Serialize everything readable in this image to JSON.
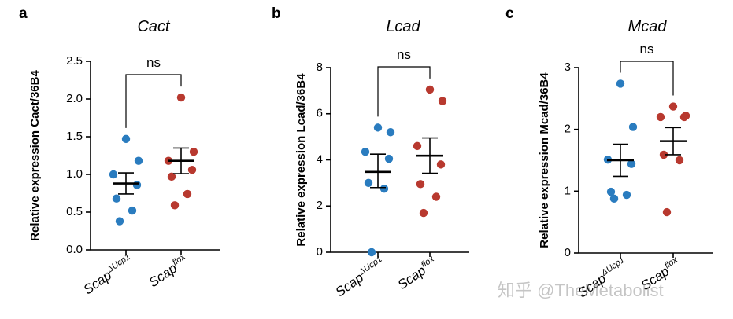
{
  "watermark": "知乎 @TheMetabolist",
  "colors": {
    "group1": "#2a7cbf",
    "group2": "#b8392f",
    "axis": "#000000"
  },
  "chart_data": [
    {
      "type": "scatter",
      "panel": "a",
      "title": "Cact",
      "ylabel": "Relative expression Cact/36B4",
      "ylim": [
        0,
        2.5
      ],
      "yticks": [
        "0.0",
        "0.5",
        "1.0",
        "1.5",
        "2.0",
        "2.5"
      ],
      "categories": [
        "Scap",
        "Scap"
      ],
      "category_superscripts": [
        "ΔUcp1",
        "flox"
      ],
      "significance": "ns",
      "series": [
        {
          "name": "ScapΔUcp1",
          "values": [
            1.47,
            1.18,
            1.0,
            0.86,
            0.68,
            0.52,
            0.38
          ],
          "mean": 0.88,
          "sem_low": 0.74,
          "sem_high": 1.02
        },
        {
          "name": "Scapflox",
          "values": [
            2.02,
            1.3,
            1.18,
            1.06,
            0.97,
            0.74,
            0.59
          ],
          "mean": 1.18,
          "sem_low": 1.01,
          "sem_high": 1.35
        }
      ]
    },
    {
      "type": "scatter",
      "panel": "b",
      "title": "Lcad",
      "ylabel": "Relative expression Lcad/36B4",
      "ylim": [
        0,
        8
      ],
      "yticks": [
        "0",
        "2",
        "4",
        "6",
        "8"
      ],
      "categories": [
        "Scap",
        "Scap"
      ],
      "category_superscripts": [
        "ΔUcp1",
        "flox"
      ],
      "significance": "ns",
      "series": [
        {
          "name": "ScapΔUcp1",
          "values": [
            5.4,
            5.2,
            4.35,
            4.05,
            3.0,
            2.75,
            0.0
          ],
          "mean": 3.48,
          "sem_low": 2.8,
          "sem_high": 4.25
        },
        {
          "name": "Scapflox",
          "values": [
            7.05,
            6.55,
            4.6,
            3.8,
            2.95,
            2.4,
            1.7
          ],
          "mean": 4.18,
          "sem_low": 3.42,
          "sem_high": 4.95
        }
      ]
    },
    {
      "type": "scatter",
      "panel": "c",
      "title": "Mcad",
      "ylabel": "Relative expression Mcad/36B4",
      "ylim": [
        0,
        3
      ],
      "yticks": [
        "0",
        "1",
        "2",
        "3"
      ],
      "categories": [
        "Scap",
        "Scap"
      ],
      "category_superscripts": [
        "ΔUcp1",
        "flox"
      ],
      "significance": "ns",
      "series": [
        {
          "name": "ScapΔUcp1",
          "values": [
            2.74,
            2.04,
            1.51,
            1.44,
            0.99,
            0.94,
            0.88
          ],
          "mean": 1.5,
          "sem_low": 1.24,
          "sem_high": 1.76
        },
        {
          "name": "Scapflox",
          "values": [
            2.37,
            2.22,
            2.2,
            2.2,
            1.59,
            1.5,
            0.66
          ],
          "mean": 1.81,
          "sem_low": 1.59,
          "sem_high": 2.03
        }
      ]
    }
  ]
}
